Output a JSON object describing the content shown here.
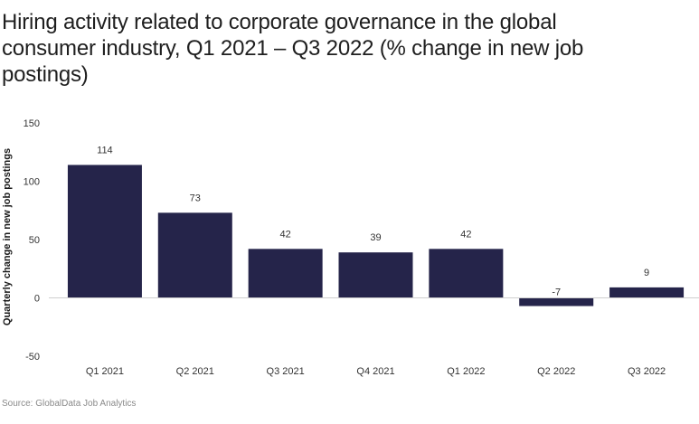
{
  "title": "Hiring activity related to corporate governance in the global consumer industry, Q1 2021 – Q3 2022 (% change in new job postings)",
  "source": "Source: GlobalData Job Analytics",
  "colors": {
    "bar": "#25244a",
    "axis_text": "#333333",
    "baseline": "#cfcfcf"
  },
  "chart_data": {
    "type": "bar",
    "title": "Hiring activity related to corporate governance in the global consumer industry, Q1 2021 – Q3 2022 (% change in new job postings)",
    "xlabel": "",
    "ylabel": "Quarterly change in new job postings",
    "categories": [
      "Q1 2021",
      "Q2 2021",
      "Q3 2021",
      "Q4 2021",
      "Q1 2022",
      "Q2 2022",
      "Q3 2022"
    ],
    "values": [
      114,
      73,
      42,
      39,
      42,
      -7,
      9
    ],
    "ylim": [
      -50,
      150
    ],
    "yticks": [
      -50,
      0,
      50,
      100,
      150
    ],
    "grid": false,
    "data_labels": true
  }
}
